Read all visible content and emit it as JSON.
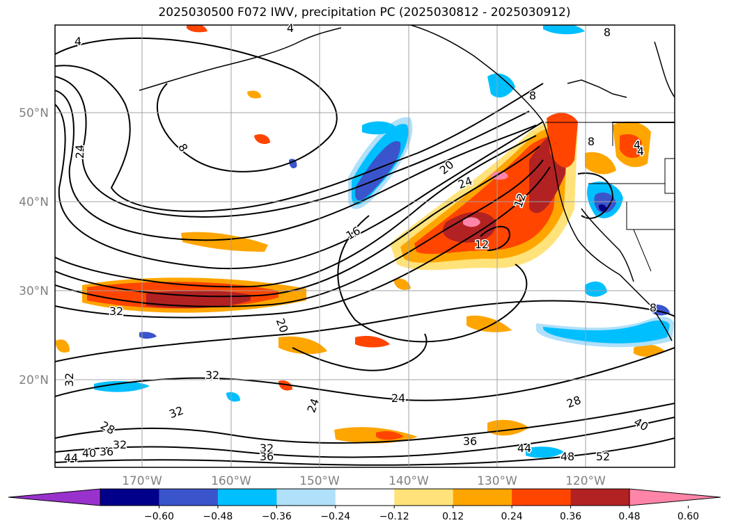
{
  "title": "2025030500 F072 IWV, precipitation PC (2025030812 - 2025030912)",
  "lat_labels": [
    "50°N",
    "40°N",
    "30°N",
    "20°N"
  ],
  "lon_labels": [
    "170°W",
    "160°W",
    "150°W",
    "140°W",
    "130°W",
    "120°W"
  ],
  "colorbar": {
    "ticks": [
      "−0.60",
      "−0.48",
      "−0.36",
      "−0.24",
      "−0.12",
      "0.12",
      "0.24",
      "0.36",
      "0.48",
      "0.60"
    ],
    "colors": [
      "#9932cc",
      "#00008b",
      "#3a55cc",
      "#00bfff",
      "#b0e0fa",
      "#ffffff",
      "#ffe37a",
      "#ffa500",
      "#ff4500",
      "#b22222",
      "#ff85a8"
    ]
  },
  "contour_labels": [
    "4",
    "8",
    "8",
    "24",
    "20",
    "24",
    "12",
    "16",
    "12",
    "8",
    "4",
    "32",
    "20",
    "32",
    "32",
    "32",
    "24",
    "24",
    "28",
    "28",
    "32",
    "36",
    "40",
    "44",
    "36",
    "32",
    "36",
    "40",
    "44",
    "48",
    "52",
    "8",
    "4",
    "4",
    "8"
  ],
  "colors": {
    "text": "#000000",
    "axis_label": "#808080",
    "grid": "#a0a0a0"
  }
}
